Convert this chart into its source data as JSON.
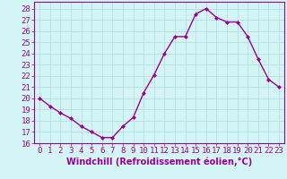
{
  "x": [
    0,
    1,
    2,
    3,
    4,
    5,
    6,
    7,
    8,
    9,
    10,
    11,
    12,
    13,
    14,
    15,
    16,
    17,
    18,
    19,
    20,
    21,
    22,
    23
  ],
  "y": [
    20,
    19.3,
    18.7,
    18.2,
    17.5,
    17.0,
    16.5,
    16.5,
    17.5,
    18.3,
    20.5,
    22.1,
    24.0,
    25.5,
    25.5,
    27.5,
    28.0,
    27.2,
    26.8,
    26.8,
    25.5,
    23.5,
    21.7,
    21.0
  ],
  "line_color": "#990099",
  "marker": "D",
  "marker_size": 2,
  "line_width": 1.0,
  "bg_color": "#d4f5f5",
  "grid_color": "#aadddd",
  "xlabel": "Windchill (Refroidissement éolien,°C)",
  "xlabel_fontsize": 7,
  "tick_fontsize": 6.5,
  "xlim": [
    -0.5,
    23.5
  ],
  "ylim": [
    16,
    28.6
  ],
  "yticks": [
    16,
    17,
    18,
    19,
    20,
    21,
    22,
    23,
    24,
    25,
    26,
    27,
    28
  ],
  "xticks": [
    0,
    1,
    2,
    3,
    4,
    5,
    6,
    7,
    8,
    9,
    10,
    11,
    12,
    13,
    14,
    15,
    16,
    17,
    18,
    19,
    20,
    21,
    22,
    23
  ]
}
